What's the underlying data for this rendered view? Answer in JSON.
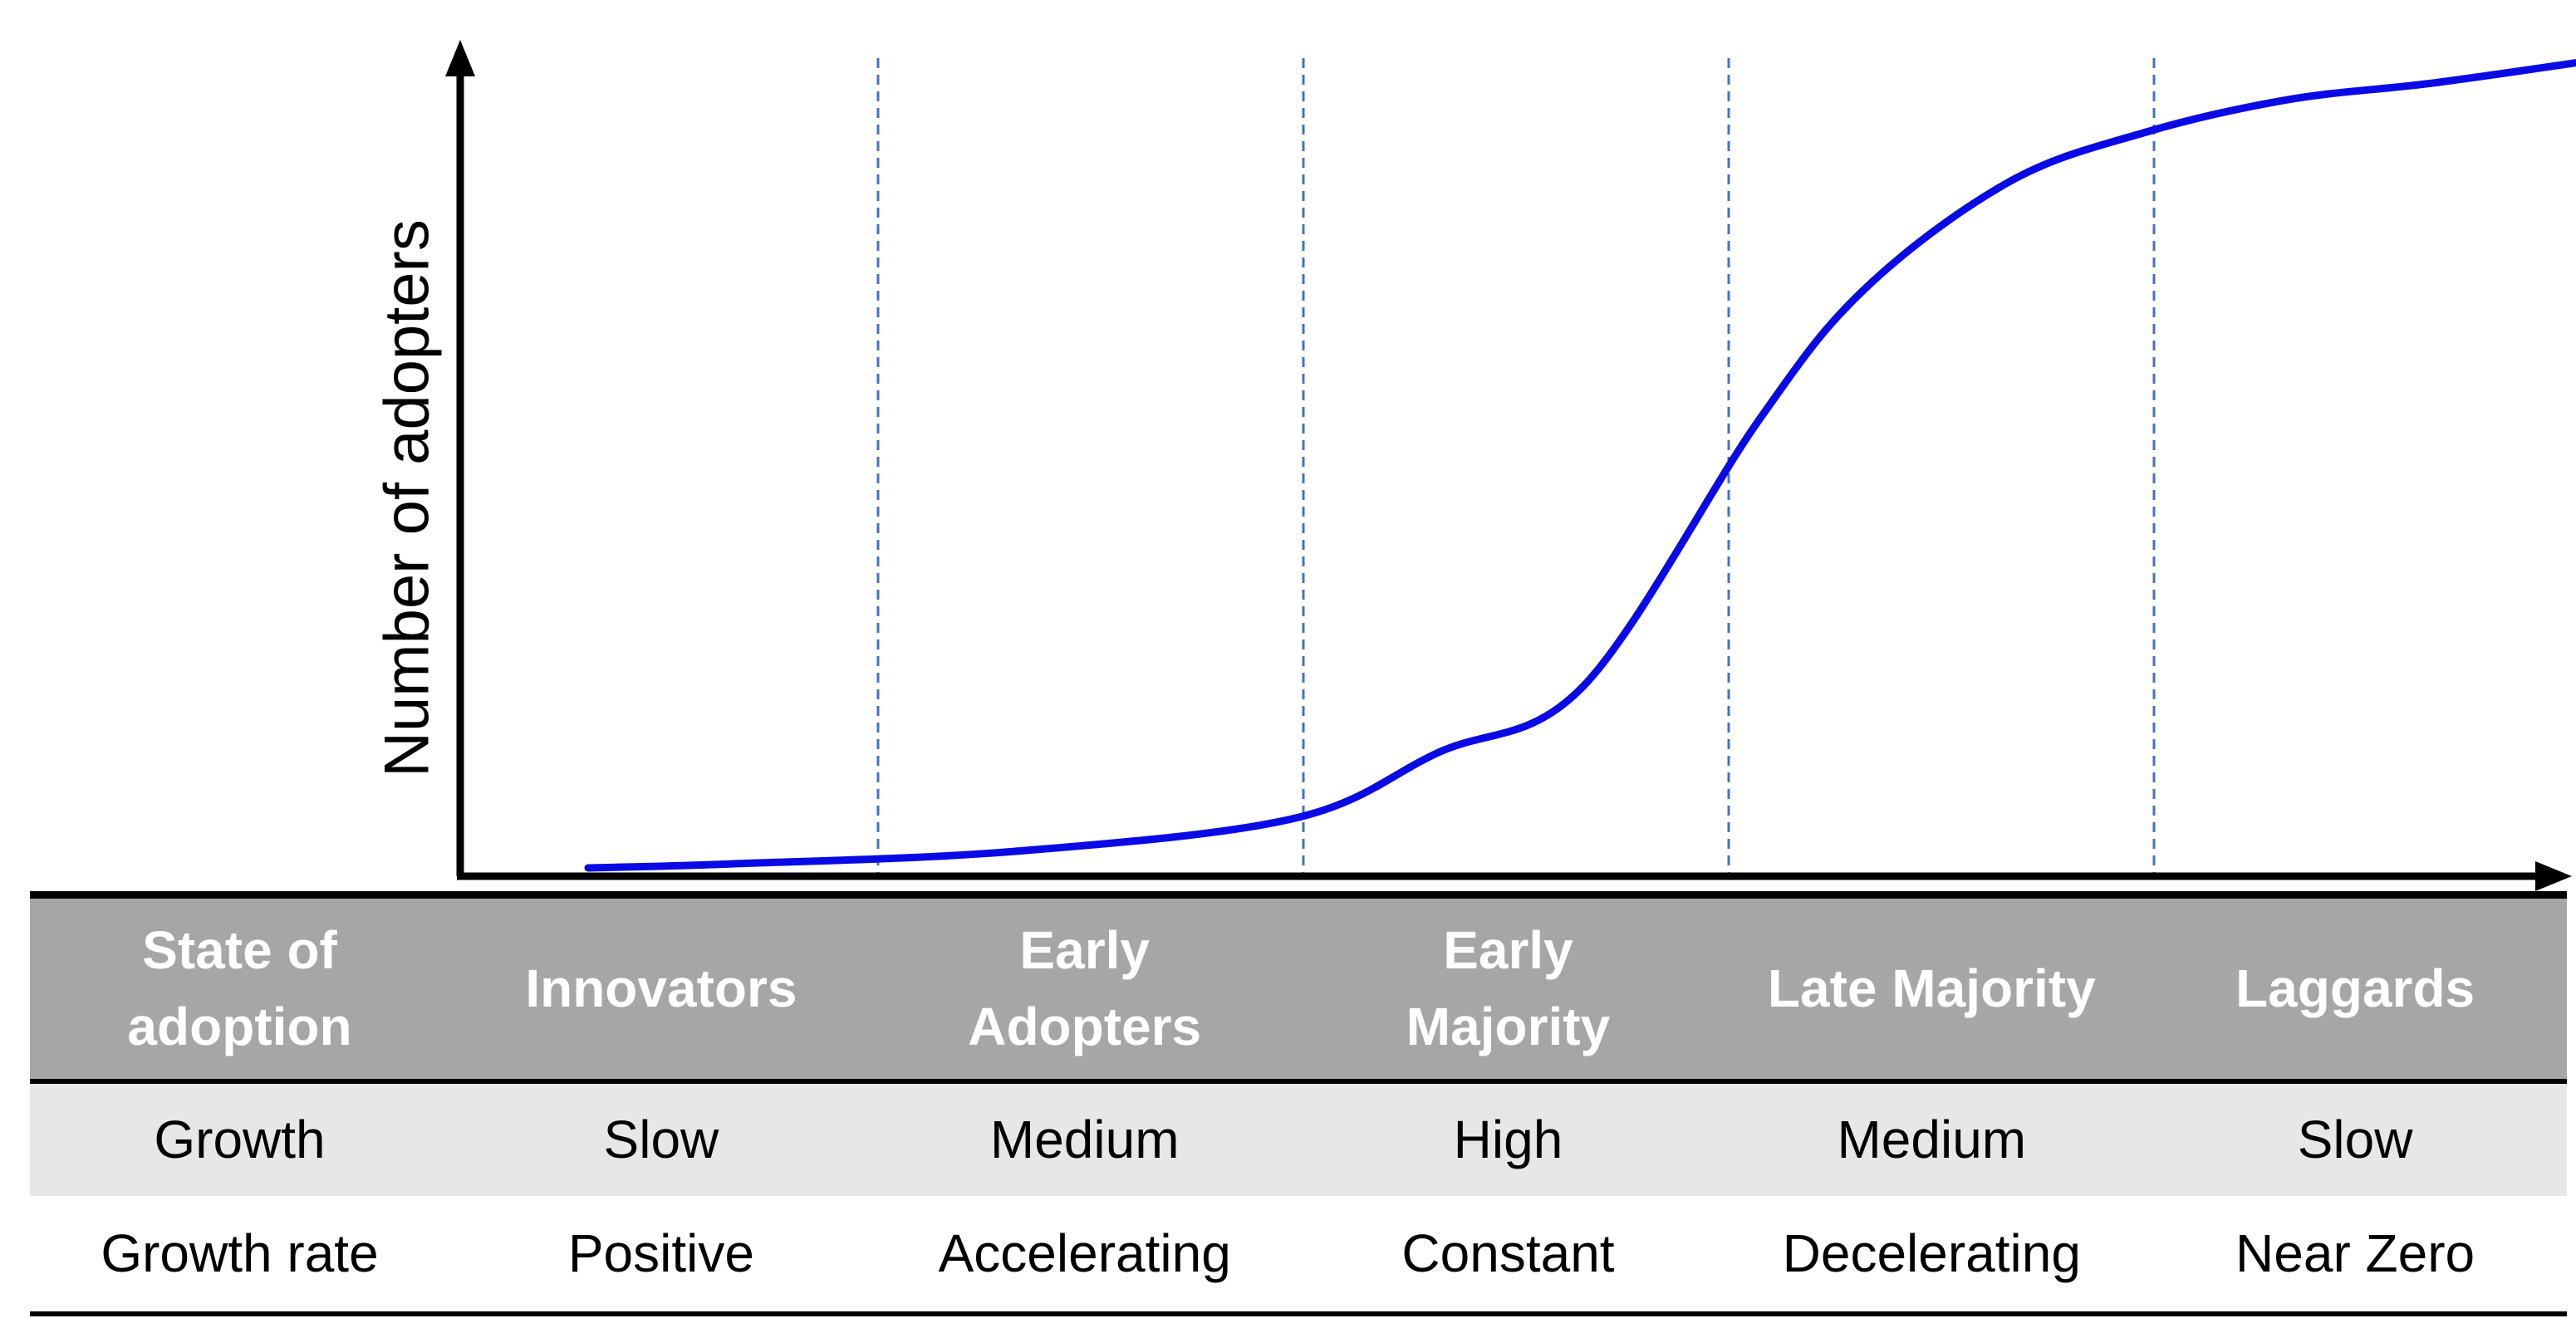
{
  "chart_data": {
    "type": "line",
    "title": "",
    "xlabel": "",
    "ylabel": "Number of adopters",
    "grid": "vertical dashed lines at segment boundaries",
    "colors": {
      "curve": "#0a0ae6",
      "gridline": "#4472c4",
      "axis": "#000000",
      "header_bg": "#a6a6a6",
      "row1_bg": "#e7e7e7"
    },
    "segments": [
      "Innovators",
      "Early Adopters",
      "Early Majority",
      "Late Majority",
      "Laggards"
    ],
    "xlim": [
      0,
      5
    ],
    "ylim": [
      0,
      100
    ],
    "x": [
      0.0,
      0.34,
      1.0,
      1.66,
      2.0,
      2.34,
      2.75,
      3.0,
      3.34,
      3.66,
      4.0,
      4.34,
      4.75
    ],
    "values": [
      1,
      1.5,
      3,
      7,
      15,
      23,
      55,
      71,
      84,
      90,
      94,
      96,
      99
    ]
  },
  "table": {
    "header": [
      "State of\nadoption",
      "Innovators",
      "Early\nAdopters",
      "Early\nMajority",
      "Late Majority",
      "Laggards"
    ],
    "rows": [
      [
        "Growth",
        "Slow",
        "Medium",
        "High",
        "Medium",
        "Slow"
      ],
      [
        "Growth rate",
        "Positive",
        "Accelerating",
        "Constant",
        "Decelerating",
        "Near Zero"
      ]
    ]
  }
}
